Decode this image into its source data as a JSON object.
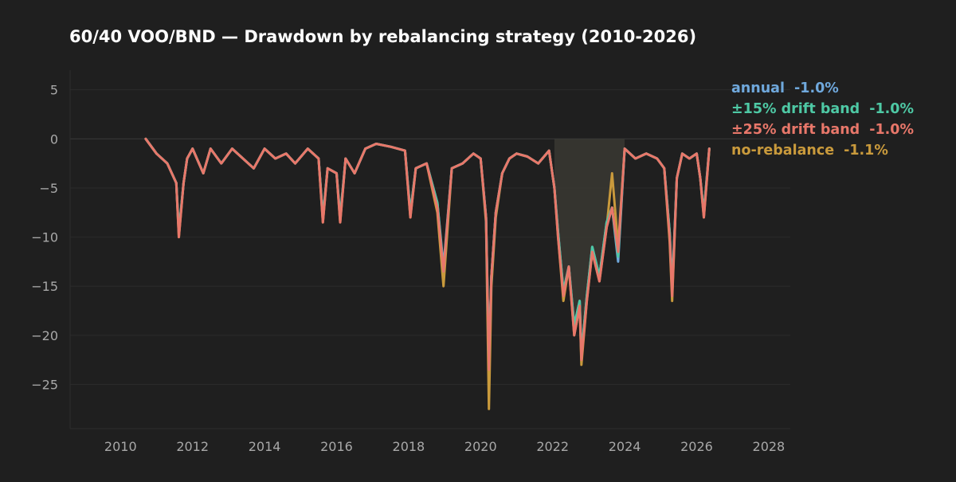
{
  "chart_data": {
    "type": "line",
    "title": "60/40 VOO/BND — Drawdown by rebalancing strategy (2010-2026)",
    "xlabel": "",
    "ylabel": "",
    "xlim": [
      2008.6,
      2028.6
    ],
    "ylim": [
      -29.5,
      7
    ],
    "x_ticks": [
      2010,
      2012,
      2014,
      2016,
      2018,
      2020,
      2022,
      2024,
      2026,
      2028
    ],
    "x_tick_labels": [
      "2010",
      "2012",
      "2014",
      "2016",
      "2018",
      "2020",
      "2022",
      "2024",
      "2026",
      "2028"
    ],
    "y_ticks": [
      5,
      0,
      -5,
      -10,
      -15,
      -20,
      -25
    ],
    "y_tick_labels": [
      "5",
      "0",
      "−5",
      "−10",
      "−15",
      "−20",
      "−25"
    ],
    "grid": true,
    "legend_position": "top-right",
    "x": [
      2010.7,
      2011.0,
      2011.3,
      2011.55,
      2011.62,
      2011.75,
      2011.85,
      2012.0,
      2012.3,
      2012.5,
      2012.8,
      2013.1,
      2013.4,
      2013.7,
      2014.0,
      2014.3,
      2014.6,
      2014.85,
      2015.2,
      2015.5,
      2015.62,
      2015.75,
      2016.0,
      2016.1,
      2016.25,
      2016.5,
      2016.8,
      2017.1,
      2017.5,
      2017.9,
      2018.05,
      2018.2,
      2018.5,
      2018.8,
      2018.97,
      2019.2,
      2019.5,
      2019.8,
      2020.0,
      2020.15,
      2020.23,
      2020.3,
      2020.42,
      2020.6,
      2020.8,
      2021.0,
      2021.3,
      2021.6,
      2021.9,
      2022.05,
      2022.15,
      2022.3,
      2022.45,
      2022.6,
      2022.75,
      2022.8,
      2022.95,
      2023.1,
      2023.3,
      2023.5,
      2023.65,
      2023.82,
      2024.0,
      2024.3,
      2024.6,
      2024.9,
      2025.1,
      2025.25,
      2025.32,
      2025.45,
      2025.6,
      2025.8,
      2026.0,
      2026.1,
      2026.2,
      2026.35
    ],
    "series": [
      {
        "name": "annual",
        "final_label": "-1.0%",
        "color": "#6fa8dc",
        "values": [
          0,
          -1.5,
          -2.5,
          -4.5,
          -9.5,
          -4.5,
          -2.0,
          -1.0,
          -3.5,
          -1.0,
          -2.5,
          -1.0,
          -2.0,
          -3.0,
          -1.0,
          -2.0,
          -1.5,
          -2.5,
          -1.0,
          -2.0,
          -8.0,
          -3.0,
          -3.5,
          -8.0,
          -2.0,
          -3.5,
          -1.0,
          -0.5,
          -0.8,
          -1.2,
          -7.5,
          -3.0,
          -2.5,
          -6.5,
          -13.0,
          -3.0,
          -2.5,
          -1.5,
          -2.0,
          -8.0,
          -22.5,
          -14.0,
          -7.5,
          -3.5,
          -2.0,
          -1.5,
          -1.8,
          -2.5,
          -1.2,
          -5.0,
          -9.5,
          -15.5,
          -13.0,
          -19.0,
          -16.5,
          -22.0,
          -16.0,
          -11.0,
          -14.0,
          -8.5,
          -7.0,
          -12.5,
          -1.0,
          -2.0,
          -1.5,
          -2.0,
          -3.0,
          -9.5,
          -15.0,
          -4.0,
          -1.5,
          -2.0,
          -1.5,
          -4.0,
          -7.5,
          -1.0
        ]
      },
      {
        "name": "±15% drift band",
        "final_label": "-1.0%",
        "color": "#4ec9a5",
        "values": [
          0,
          -1.5,
          -2.5,
          -4.5,
          -9.5,
          -4.5,
          -2.0,
          -1.0,
          -3.5,
          -1.0,
          -2.5,
          -1.0,
          -2.0,
          -3.0,
          -1.0,
          -2.0,
          -1.5,
          -2.5,
          -1.0,
          -2.0,
          -8.0,
          -3.0,
          -3.5,
          -8.0,
          -2.0,
          -3.5,
          -1.0,
          -0.5,
          -0.8,
          -1.2,
          -7.5,
          -3.0,
          -2.5,
          -6.5,
          -13.5,
          -3.0,
          -2.5,
          -1.5,
          -2.0,
          -8.0,
          -23.0,
          -14.0,
          -7.5,
          -3.5,
          -2.0,
          -1.5,
          -1.8,
          -2.5,
          -1.2,
          -5.0,
          -9.5,
          -15.5,
          -13.0,
          -19.0,
          -16.5,
          -22.0,
          -16.0,
          -11.0,
          -14.0,
          -8.5,
          -7.0,
          -12.0,
          -1.0,
          -2.0,
          -1.5,
          -2.0,
          -3.0,
          -9.5,
          -15.5,
          -4.0,
          -1.5,
          -2.0,
          -1.5,
          -4.0,
          -7.5,
          -1.0
        ]
      },
      {
        "name": "±25% drift band",
        "final_label": "-1.0%",
        "color": "#e8776a",
        "values": [
          0,
          -1.5,
          -2.5,
          -4.5,
          -10.0,
          -4.5,
          -2.0,
          -1.0,
          -3.5,
          -1.0,
          -2.5,
          -1.0,
          -2.0,
          -3.0,
          -1.0,
          -2.0,
          -1.5,
          -2.5,
          -1.0,
          -2.0,
          -8.5,
          -3.0,
          -3.5,
          -8.5,
          -2.0,
          -3.5,
          -1.0,
          -0.5,
          -0.8,
          -1.2,
          -8.0,
          -3.0,
          -2.5,
          -7.0,
          -13.5,
          -3.0,
          -2.5,
          -1.5,
          -2.0,
          -8.0,
          -23.5,
          -14.0,
          -7.5,
          -3.5,
          -2.0,
          -1.5,
          -1.8,
          -2.5,
          -1.2,
          -5.0,
          -10.0,
          -16.0,
          -13.0,
          -20.0,
          -17.0,
          -22.5,
          -16.5,
          -11.5,
          -14.5,
          -9.0,
          -7.0,
          -11.5,
          -1.0,
          -2.0,
          -1.5,
          -2.0,
          -3.0,
          -10.0,
          -16.0,
          -4.0,
          -1.5,
          -2.0,
          -1.5,
          -4.0,
          -8.0,
          -1.0
        ]
      },
      {
        "name": "no-rebalance",
        "final_label": "-1.1%",
        "color": "#c99a3c",
        "values": [
          0,
          -1.5,
          -2.5,
          -4.5,
          -10.0,
          -4.5,
          -2.0,
          -1.0,
          -3.5,
          -1.0,
          -2.5,
          -1.0,
          -2.0,
          -3.0,
          -1.0,
          -2.0,
          -1.5,
          -2.5,
          -1.0,
          -2.0,
          -8.5,
          -3.0,
          -3.5,
          -8.5,
          -2.0,
          -3.5,
          -1.0,
          -0.5,
          -0.8,
          -1.2,
          -8.0,
          -3.0,
          -2.5,
          -7.5,
          -15.0,
          -3.0,
          -2.5,
          -1.5,
          -2.0,
          -8.5,
          -27.5,
          -15.0,
          -8.0,
          -3.5,
          -2.0,
          -1.5,
          -1.8,
          -2.5,
          -1.2,
          -5.0,
          -10.0,
          -16.5,
          -13.0,
          -20.0,
          -17.0,
          -23.0,
          -16.5,
          -11.5,
          -14.5,
          -9.0,
          -3.5,
          -11.0,
          -1.0,
          -2.0,
          -1.5,
          -2.0,
          -3.0,
          -10.5,
          -16.5,
          -4.0,
          -1.5,
          -2.0,
          -1.5,
          -4.0,
          -8.0,
          -1.1
        ]
      }
    ],
    "shaded_region": {
      "x": [
        2022.0,
        2024.0
      ],
      "color": "#3a3833"
    }
  }
}
